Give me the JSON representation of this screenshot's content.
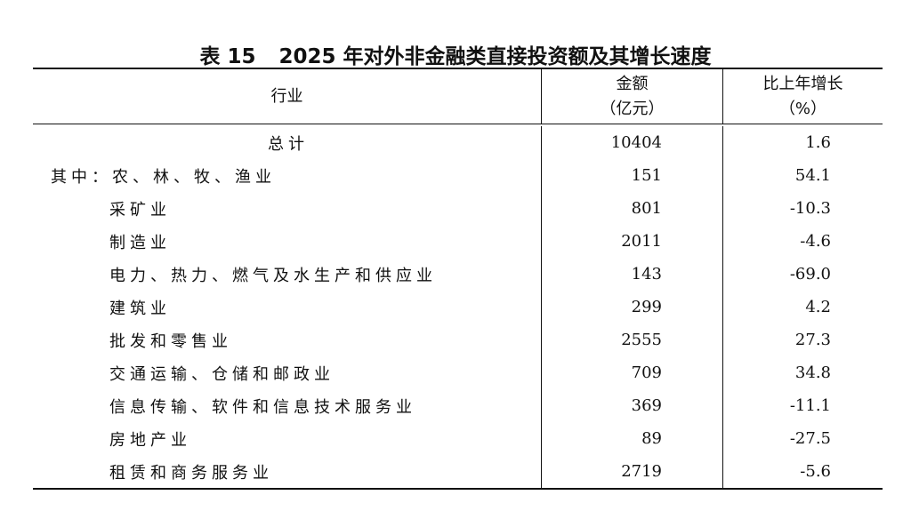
{
  "title": {
    "label": "表 15",
    "text": "2025 年对外非金融类直接投资额及其增长速度"
  },
  "headers": {
    "industry": "行业",
    "amount": "金额",
    "amount_unit": "（亿元）",
    "growth": "比上年增长",
    "growth_unit": "（%）"
  },
  "rows": [
    {
      "name": "总计",
      "amount": "10404",
      "growth": "1.6"
    },
    {
      "name": "其中：农、林、牧、渔业",
      "amount": "151",
      "growth": "54.1"
    },
    {
      "name": "采矿业",
      "amount": "801",
      "growth": "-10.3"
    },
    {
      "name": "制造业",
      "amount": "2011",
      "growth": "-4.6"
    },
    {
      "name": "电力、热力、燃气及水生产和供应业",
      "amount": "143",
      "growth": "-69.0"
    },
    {
      "name": "建筑业",
      "amount": "299",
      "growth": "4.2"
    },
    {
      "name": "批发和零售业",
      "amount": "2555",
      "growth": "27.3"
    },
    {
      "name": "交通运输、仓储和邮政业",
      "amount": "709",
      "growth": "34.8"
    },
    {
      "name": "信息传输、软件和信息技术服务业",
      "amount": "369",
      "growth": "-11.1"
    },
    {
      "name": "房地产业",
      "amount": "89",
      "growth": "-27.5"
    },
    {
      "name": "租赁和商务服务业",
      "amount": "2719",
      "growth": "-5.6"
    }
  ]
}
